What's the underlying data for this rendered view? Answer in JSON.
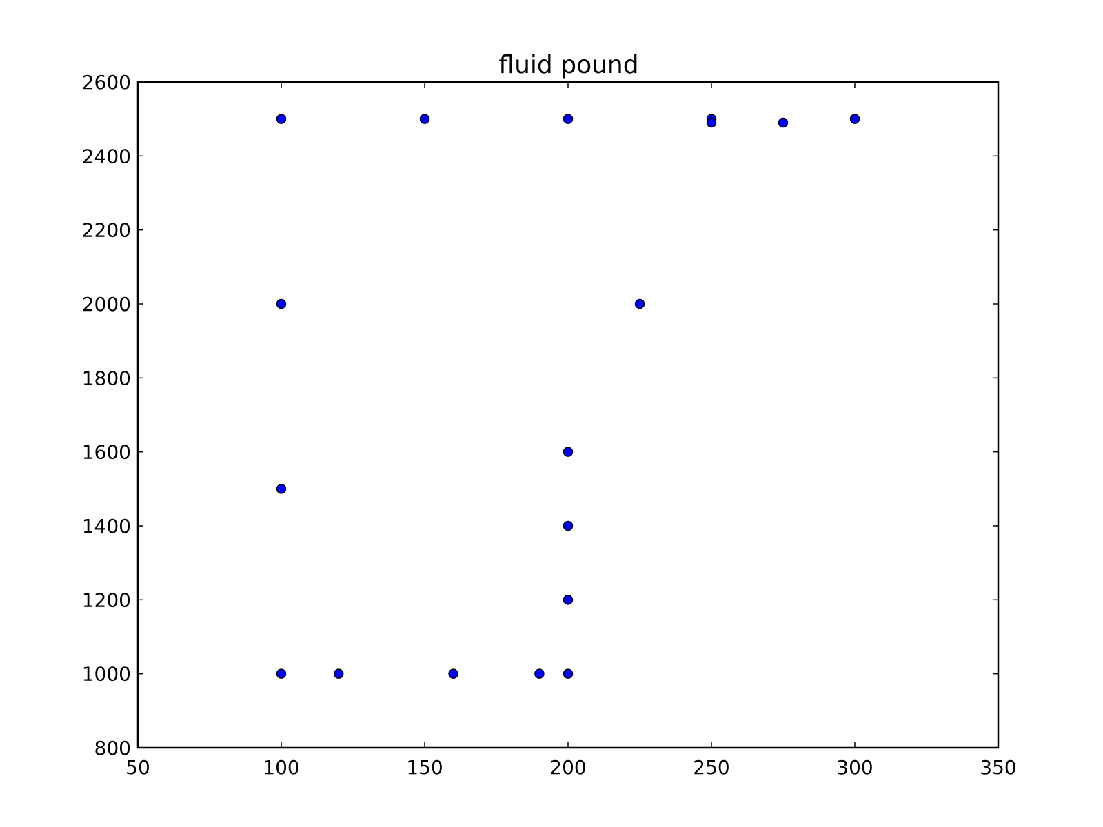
{
  "chart_data": {
    "type": "scatter",
    "title": "fluid pound",
    "xlabel": "",
    "ylabel": "",
    "xlim": [
      50,
      350
    ],
    "ylim": [
      800,
      2600
    ],
    "x_ticks": [
      50,
      100,
      150,
      200,
      250,
      300,
      350
    ],
    "y_ticks": [
      800,
      1000,
      1200,
      1400,
      1600,
      1800,
      2000,
      2200,
      2400,
      2600
    ],
    "grid": false,
    "marker_color": "#0000ff",
    "marker_edge_color": "#000000",
    "points": [
      {
        "x": 100,
        "y": 2500
      },
      {
        "x": 150,
        "y": 2500
      },
      {
        "x": 200,
        "y": 2500
      },
      {
        "x": 250,
        "y": 2500
      },
      {
        "x": 250,
        "y": 2490
      },
      {
        "x": 275,
        "y": 2490
      },
      {
        "x": 300,
        "y": 2500
      },
      {
        "x": 100,
        "y": 2000
      },
      {
        "x": 225,
        "y": 2000
      },
      {
        "x": 200,
        "y": 1600
      },
      {
        "x": 100,
        "y": 1500
      },
      {
        "x": 200,
        "y": 1400
      },
      {
        "x": 200,
        "y": 1200
      },
      {
        "x": 100,
        "y": 1000
      },
      {
        "x": 120,
        "y": 1000
      },
      {
        "x": 160,
        "y": 1000
      },
      {
        "x": 190,
        "y": 1000
      },
      {
        "x": 200,
        "y": 1000
      }
    ]
  }
}
